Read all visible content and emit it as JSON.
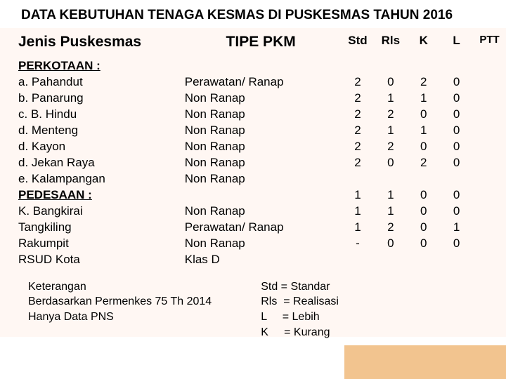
{
  "title": "DATA KEBUTUHAN TENAGA KESMAS DI PUSKESMAS TAHUN 2016",
  "headers": {
    "jenis": "Jenis Puskesmas",
    "tipe": "TIPE PKM",
    "c1": "Std",
    "c2": "Rls",
    "c3": "K",
    "c4": "L",
    "c5": "PTT"
  },
  "rows": [
    {
      "jenis": "PERKOTAAN :",
      "tipe": "",
      "c1": "",
      "c2": "",
      "c3": "",
      "c4": "",
      "section": true
    },
    {
      "jenis": "a. Pahandut",
      "tipe": "Perawatan/ Ranap",
      "c1": "2",
      "c2": "0",
      "c3": "2",
      "c4": "0"
    },
    {
      "jenis": "b. Panarung",
      "tipe": "Non Ranap",
      "c1": "2",
      "c2": "1",
      "c3": "1",
      "c4": "0"
    },
    {
      "jenis": "c. B. Hindu",
      "tipe": "Non Ranap",
      "c1": "2",
      "c2": "2",
      "c3": "0",
      "c4": "0"
    },
    {
      "jenis": "d. Menteng",
      "tipe": "Non Ranap",
      "c1": "2",
      "c2": "1",
      "c3": "1",
      "c4": "0"
    },
    {
      "jenis": "d. Kayon",
      "tipe": "Non Ranap",
      "c1": "2",
      "c2": "2",
      "c3": "0",
      "c4": "0"
    },
    {
      "jenis": "d. Jekan Raya",
      "tipe": "Non Ranap",
      "c1": "2",
      "c2": "0",
      "c3": "2",
      "c4": "0"
    },
    {
      "jenis": "e. Kalampangan",
      "tipe": "Non Ranap",
      "c1": "",
      "c2": "",
      "c3": "",
      "c4": ""
    },
    {
      "jenis": "PEDESAAN :",
      "tipe": "",
      "c1": "1",
      "c2": "1",
      "c3": "0",
      "c4": "0",
      "section": true
    },
    {
      "jenis": "K. Bangkirai",
      "tipe": "Non Ranap",
      "c1": "1",
      "c2": "1",
      "c3": "0",
      "c4": "0"
    },
    {
      "jenis": "Tangkiling",
      "tipe": "Perawatan/ Ranap",
      "c1": "1",
      "c2": "2",
      "c3": "0",
      "c4": "1"
    },
    {
      "jenis": "Rakumpit",
      "tipe": "Non Ranap",
      "c1": "-",
      "c2": "0",
      "c3": "0",
      "c4": "0"
    },
    {
      "jenis": "RSUD Kota",
      "tipe": "Klas D",
      "c1": "",
      "c2": "",
      "c3": "",
      "c4": ""
    }
  ],
  "legend": {
    "left": "Keterangan\nBerdasarkan Permenkes 75 Th 2014\nHanya Data PNS",
    "right": "Std = Standar\nRls  = Realisasi\nL     = Lebih\nK     = Kurang"
  },
  "colors": {
    "corner": "#f2c48f",
    "band": "#fff7f3"
  }
}
